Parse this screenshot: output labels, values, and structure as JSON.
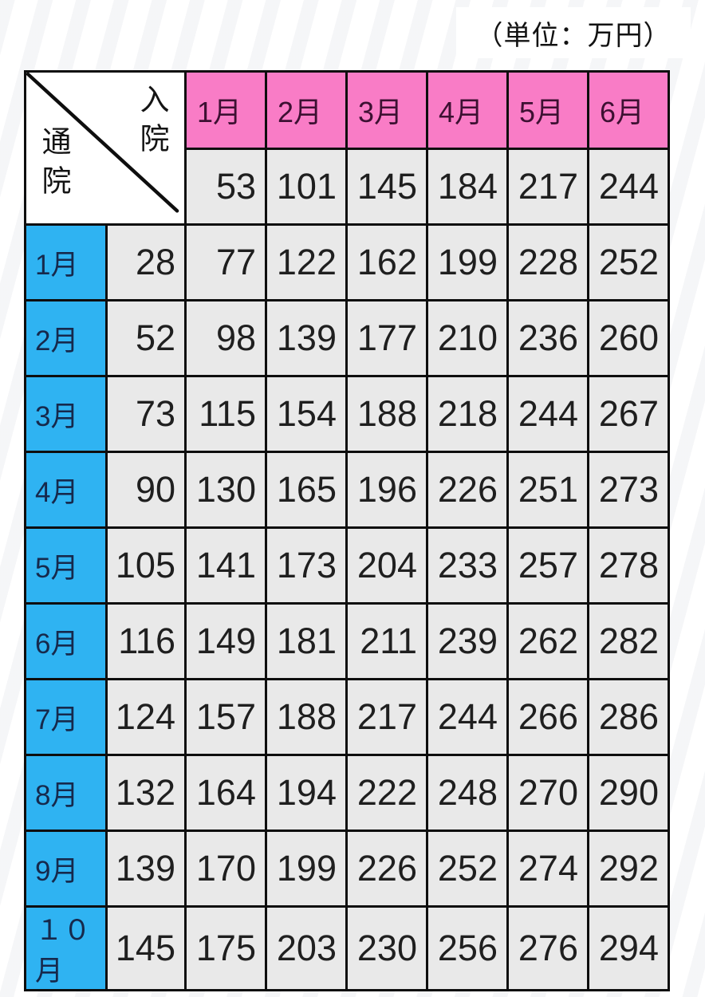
{
  "colors": {
    "header_pink": "#f97cc6",
    "label_blue": "#2fb3f2",
    "cell_gray": "#e9e9e9",
    "border": "#0e0e0e"
  },
  "page": {
    "unit_label": "（単位：万円）"
  },
  "chart_data": {
    "type": "table",
    "unit": "（単位：万円）",
    "column_axis_label": "入院",
    "row_axis_label": "通院",
    "corner_labels": {
      "top_right": "入院",
      "bottom_left": "通院"
    },
    "columns": [
      "1月",
      "2月",
      "3月",
      "4月",
      "5月",
      "6月"
    ],
    "hospitalization_only": [
      53,
      101,
      145,
      184,
      217,
      244
    ],
    "rows": [
      {
        "label": "1月",
        "outpatient_only": 28,
        "values": [
          77,
          122,
          162,
          199,
          228,
          252
        ]
      },
      {
        "label": "2月",
        "outpatient_only": 52,
        "values": [
          98,
          139,
          177,
          210,
          236,
          260
        ]
      },
      {
        "label": "3月",
        "outpatient_only": 73,
        "values": [
          115,
          154,
          188,
          218,
          244,
          267
        ]
      },
      {
        "label": "4月",
        "outpatient_only": 90,
        "values": [
          130,
          165,
          196,
          226,
          251,
          273
        ]
      },
      {
        "label": "5月",
        "outpatient_only": 105,
        "values": [
          141,
          173,
          204,
          233,
          257,
          278
        ]
      },
      {
        "label": "6月",
        "outpatient_only": 116,
        "values": [
          149,
          181,
          211,
          239,
          262,
          282
        ]
      },
      {
        "label": "7月",
        "outpatient_only": 124,
        "values": [
          157,
          188,
          217,
          244,
          266,
          286
        ]
      },
      {
        "label": "8月",
        "outpatient_only": 132,
        "values": [
          164,
          194,
          222,
          248,
          270,
          290
        ]
      },
      {
        "label": "9月",
        "outpatient_only": 139,
        "values": [
          170,
          199,
          226,
          252,
          274,
          292
        ]
      },
      {
        "label": "１０月",
        "outpatient_only": 145,
        "values": [
          175,
          203,
          230,
          256,
          276,
          294
        ]
      }
    ]
  }
}
